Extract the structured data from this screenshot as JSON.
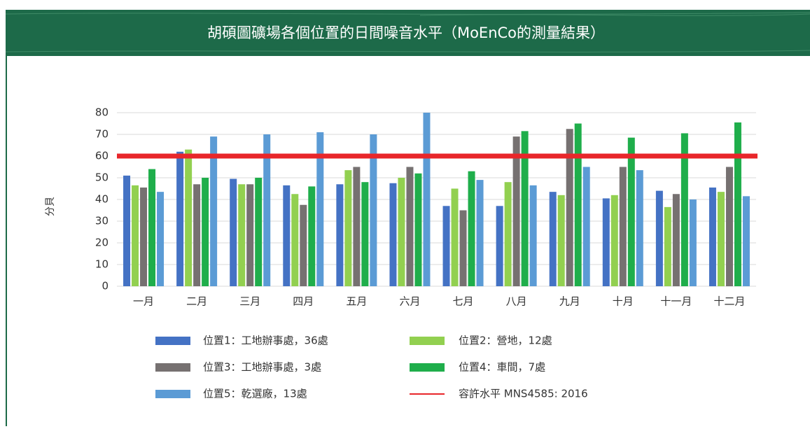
{
  "chart_data": {
    "type": "bar",
    "title": "胡碩圖礦場各個位置的日間噪音水平（MoEnCo的測量結果）",
    "y_label": "分貝",
    "categories": [
      "一月",
      "二月",
      "三月",
      "四月",
      "五月",
      "六月",
      "七月",
      "八月",
      "九月",
      "十月",
      "十一月",
      "十二月"
    ],
    "series": [
      {
        "name": "位置1：工地辦事處，36處",
        "color": "#4472c4",
        "values": [
          51,
          62,
          49.5,
          46.5,
          47,
          47.5,
          37,
          37,
          43.5,
          40.5,
          44,
          45.5
        ]
      },
      {
        "name": "位置2：營地，12處",
        "color": "#92d050",
        "values": [
          46.5,
          63,
          47,
          42.5,
          53.5,
          50,
          45,
          48,
          42,
          42,
          36.5,
          43.5
        ]
      },
      {
        "name": "位置3：工地辦事處，3處",
        "color": "#767171",
        "values": [
          45.5,
          47,
          47,
          37.5,
          55,
          55,
          35,
          69,
          72.5,
          55,
          42.5,
          55
        ]
      },
      {
        "name": "位置4：車間，7處",
        "color": "#1fae4b",
        "values": [
          54,
          50,
          50,
          46,
          48,
          52,
          53,
          71.5,
          75,
          68.5,
          70.5,
          75.5
        ]
      },
      {
        "name": "位置5：乾選廠，13處",
        "color": "#5b9bd5",
        "values": [
          43.5,
          69,
          70,
          71,
          70,
          80,
          49,
          46.5,
          55,
          53.5,
          40,
          41.5
        ]
      }
    ],
    "reference": {
      "name": "容許水平 MNS4585: 2016",
      "value": 60,
      "color": "#e8262a"
    },
    "ylim": [
      0,
      80
    ],
    "yticks": [
      0,
      10,
      20,
      30,
      40,
      50,
      60,
      70,
      80
    ],
    "grid": true
  }
}
